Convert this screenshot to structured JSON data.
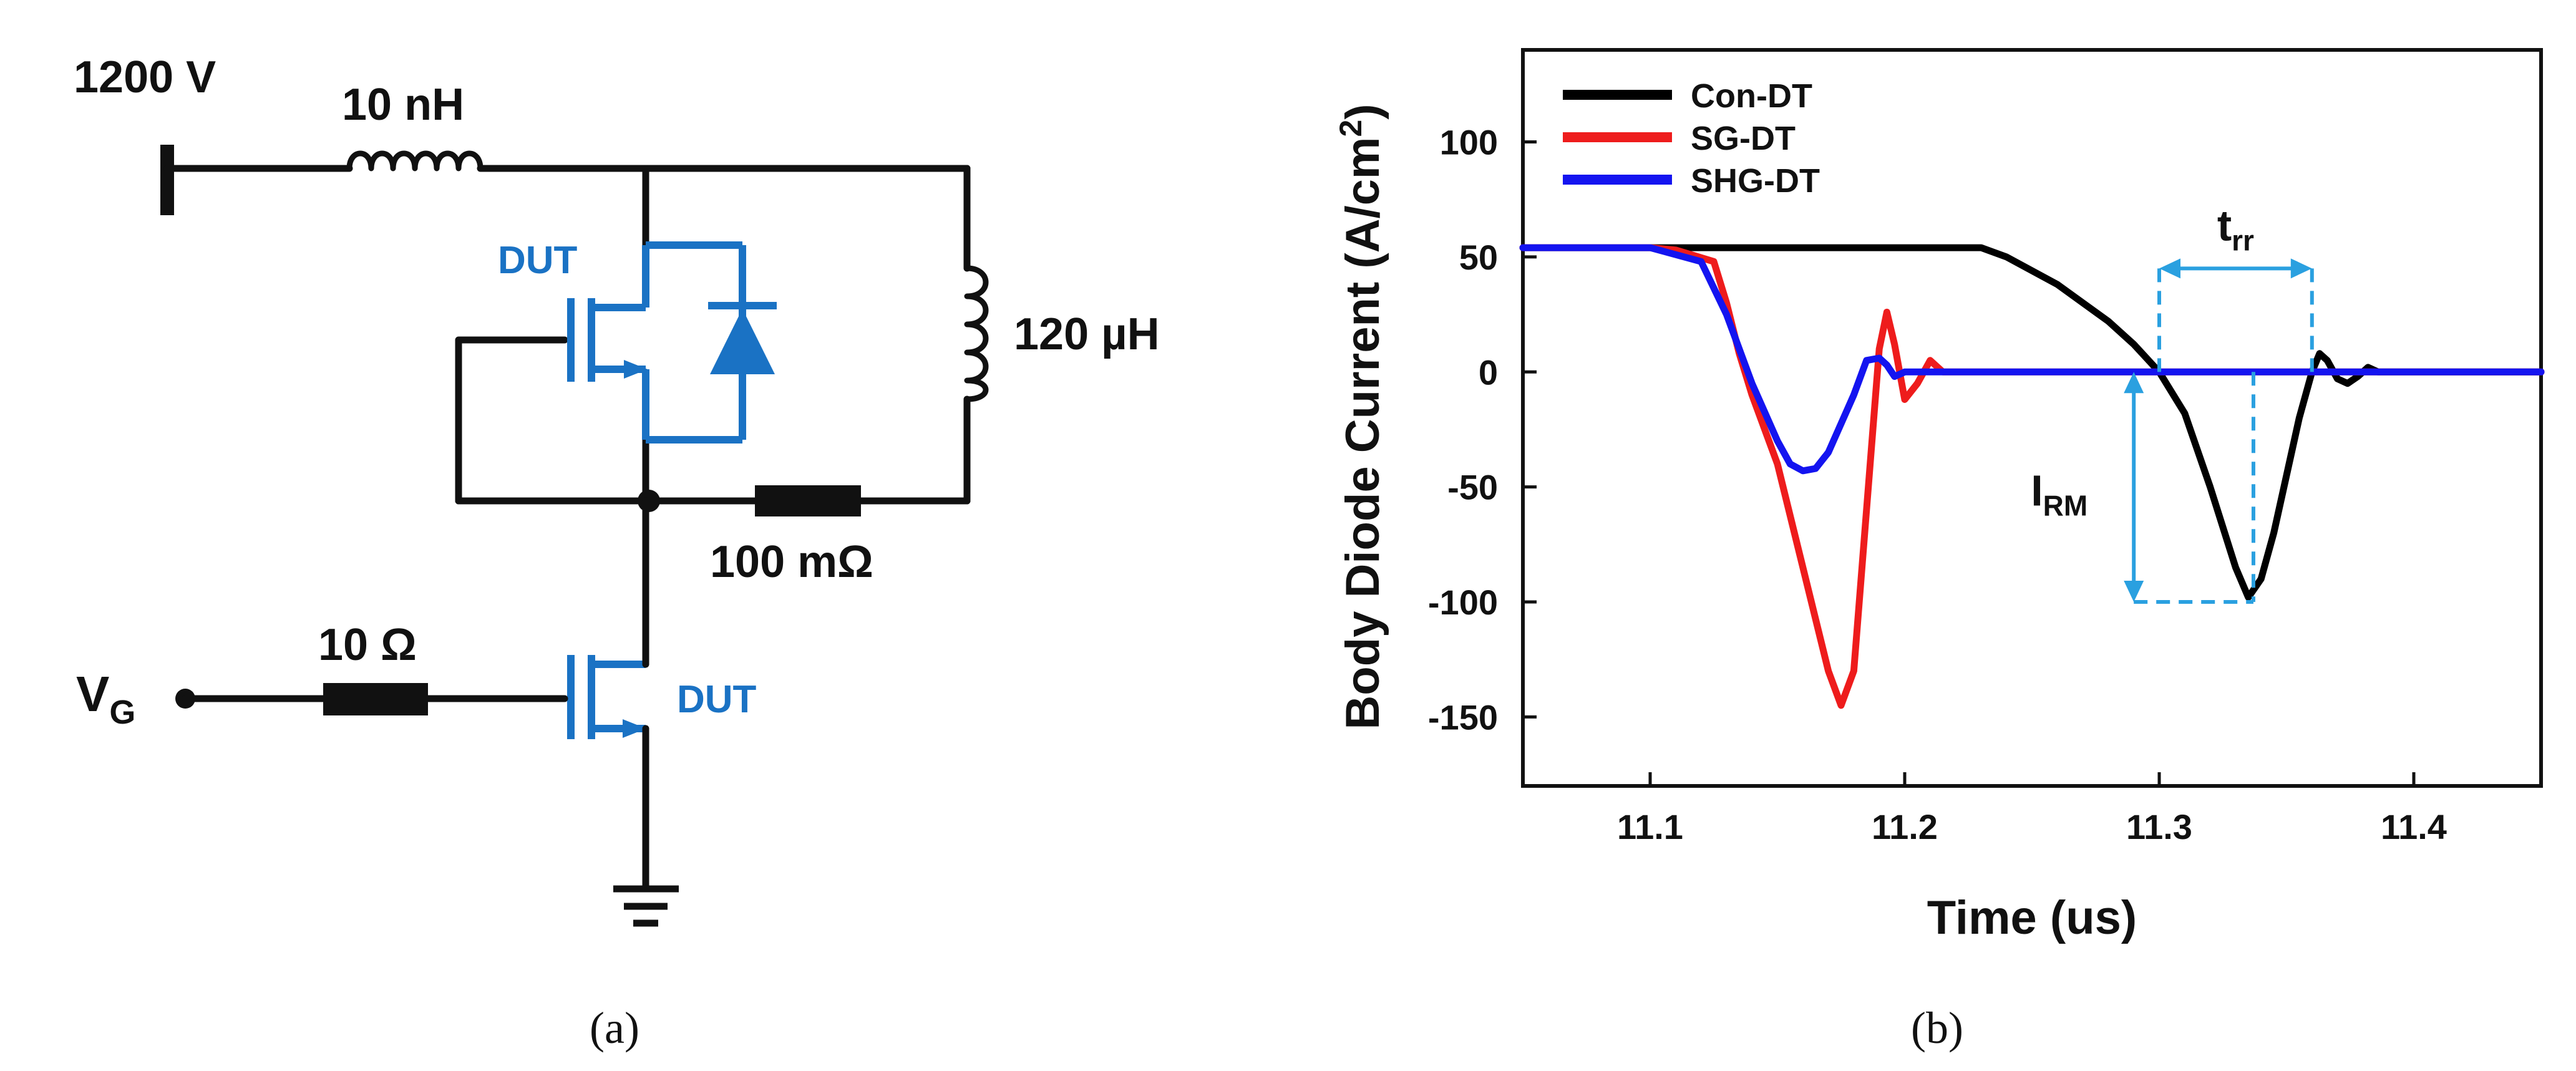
{
  "panel_a": {
    "caption": "(a)",
    "supply_label": "1200 V",
    "stray_inductor_label": "10 nH",
    "load_inductor_label": "120 µH",
    "resistor_label": "100 mΩ",
    "gate_resistor_label": "10 Ω",
    "gate_voltage_label": "V",
    "gate_voltage_sub": "G",
    "upper_dut_label": "DUT",
    "lower_dut_label": "DUT"
  },
  "panel_b": {
    "caption": "(b)",
    "trr_label": "t",
    "trr_sub": "rr",
    "irm_label": "I",
    "irm_sub": "RM"
  },
  "colors": {
    "wire": "#111111",
    "dut": "#1a72c4",
    "con_dt": "#000000",
    "sg_dt": "#ee1c1c",
    "shg_dt": "#1414f0",
    "annotation": "#2aa0e0"
  },
  "chart_data": {
    "type": "line",
    "title": "",
    "xlabel": "Time (us)",
    "ylabel": "Body Diode Current (A/cm",
    "ylabel_sup": "2",
    "ylabel_end": ")",
    "xlim": [
      11.05,
      11.45
    ],
    "ylim": [
      -180,
      140
    ],
    "xticks": [
      "11.1",
      "11.2",
      "11.3",
      "11.4"
    ],
    "xtick_values": [
      11.1,
      11.2,
      11.3,
      11.4
    ],
    "yticks": [
      "100",
      "50",
      "0",
      "-50",
      "-100",
      "-150"
    ],
    "ytick_values": [
      100,
      50,
      0,
      -50,
      -100,
      -150
    ],
    "legend_position": "top-left",
    "series": [
      {
        "name": "Con-DT",
        "color": "#000000",
        "x": [
          11.05,
          11.1,
          11.23,
          11.24,
          11.26,
          11.28,
          11.29,
          11.3,
          11.31,
          11.32,
          11.33,
          11.335,
          11.34,
          11.345,
          11.35,
          11.355,
          11.36,
          11.363,
          11.366,
          11.37,
          11.374,
          11.378,
          11.382,
          11.386,
          11.39,
          11.45
        ],
        "y": [
          54,
          54,
          54,
          50,
          38,
          22,
          12,
          0,
          -18,
          -50,
          -85,
          -98,
          -90,
          -70,
          -45,
          -20,
          0,
          8,
          5,
          -3,
          -5,
          -2,
          2,
          0,
          0,
          0
        ]
      },
      {
        "name": "SG-DT",
        "color": "#ee1c1c",
        "x": [
          11.05,
          11.1,
          11.11,
          11.125,
          11.13,
          11.135,
          11.14,
          11.15,
          11.16,
          11.17,
          11.175,
          11.18,
          11.185,
          11.19,
          11.193,
          11.196,
          11.2,
          11.205,
          11.21,
          11.215,
          11.22,
          11.45
        ],
        "y": [
          54,
          54,
          53,
          48,
          30,
          8,
          -10,
          -40,
          -85,
          -130,
          -145,
          -130,
          -60,
          10,
          26,
          12,
          -12,
          -5,
          5,
          0,
          0,
          0
        ]
      },
      {
        "name": "SHG-DT",
        "color": "#1414f0",
        "x": [
          11.05,
          11.1,
          11.12,
          11.13,
          11.14,
          11.15,
          11.155,
          11.16,
          11.165,
          11.17,
          11.18,
          11.185,
          11.19,
          11.193,
          11.196,
          11.2,
          11.21,
          11.45
        ],
        "y": [
          54,
          54,
          48,
          25,
          -5,
          -30,
          -40,
          -43,
          -42,
          -35,
          -10,
          5,
          6,
          3,
          -2,
          0,
          0,
          0
        ]
      }
    ],
    "annotations": {
      "trr": {
        "x_start": 11.3,
        "x_end": 11.36,
        "y": 45
      },
      "irm": {
        "x": 11.29,
        "y_top": 0,
        "y_bottom": -100,
        "x_peak": 11.337
      }
    }
  }
}
